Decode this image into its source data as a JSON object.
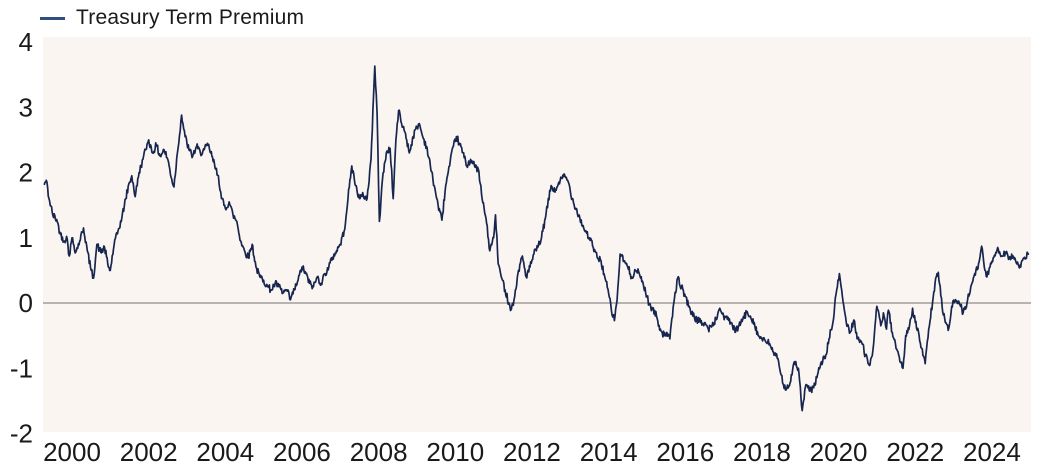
{
  "legend": {
    "label": "Treasury Term Premium"
  },
  "colors": {
    "line": "#17264e",
    "legend_marker": "#2f4f80",
    "plot_background": "#fbf5f1",
    "outer_background": "#ffffff",
    "zero_line": "#8c8c8c",
    "text": "#1a1a1a"
  },
  "chart_data": {
    "type": "line",
    "title": "",
    "xlabel": "",
    "ylabel": "",
    "legend_position": "top-left",
    "grid": false,
    "zero_line": true,
    "x_ticks": [
      2000,
      2002,
      2004,
      2006,
      2008,
      2010,
      2012,
      2014,
      2016,
      2018,
      2020,
      2022,
      2024
    ],
    "y_ticks": [
      4,
      3,
      2,
      1,
      0,
      -1,
      -2
    ],
    "xlim": [
      1999.24,
      2025.05
    ],
    "ylim": [
      -2.0,
      4.08
    ],
    "series": [
      {
        "name": "Treasury Term Premium",
        "points": [
          [
            1999.28,
            1.82
          ],
          [
            1999.33,
            1.88
          ],
          [
            1999.4,
            1.6
          ],
          [
            1999.5,
            1.35
          ],
          [
            1999.6,
            1.28
          ],
          [
            1999.7,
            1.05
          ],
          [
            1999.8,
            0.95
          ],
          [
            1999.86,
            1.02
          ],
          [
            1999.93,
            0.72
          ],
          [
            2000.0,
            1.0
          ],
          [
            2000.1,
            0.78
          ],
          [
            2000.2,
            0.95
          ],
          [
            2000.3,
            1.15
          ],
          [
            2000.4,
            0.8
          ],
          [
            2000.5,
            0.5
          ],
          [
            2000.56,
            0.38
          ],
          [
            2000.65,
            0.9
          ],
          [
            2000.75,
            0.78
          ],
          [
            2000.85,
            0.85
          ],
          [
            2000.95,
            0.55
          ],
          [
            2001.0,
            0.5
          ],
          [
            2001.1,
            0.9
          ],
          [
            2001.2,
            1.1
          ],
          [
            2001.3,
            1.3
          ],
          [
            2001.4,
            1.6
          ],
          [
            2001.5,
            1.85
          ],
          [
            2001.56,
            1.95
          ],
          [
            2001.65,
            1.63
          ],
          [
            2001.75,
            2.0
          ],
          [
            2001.85,
            2.2
          ],
          [
            2001.92,
            2.35
          ],
          [
            2002.0,
            2.5
          ],
          [
            2002.1,
            2.3
          ],
          [
            2002.2,
            2.42
          ],
          [
            2002.3,
            2.25
          ],
          [
            2002.4,
            2.35
          ],
          [
            2002.5,
            2.2
          ],
          [
            2002.6,
            1.9
          ],
          [
            2002.66,
            1.78
          ],
          [
            2002.75,
            2.3
          ],
          [
            2002.86,
            2.88
          ],
          [
            2002.95,
            2.55
          ],
          [
            2003.05,
            2.35
          ],
          [
            2003.15,
            2.25
          ],
          [
            2003.25,
            2.4
          ],
          [
            2003.35,
            2.3
          ],
          [
            2003.45,
            2.35
          ],
          [
            2003.55,
            2.42
          ],
          [
            2003.65,
            2.25
          ],
          [
            2003.75,
            2.05
          ],
          [
            2003.82,
            1.95
          ],
          [
            2003.9,
            1.6
          ],
          [
            2004.0,
            1.45
          ],
          [
            2004.1,
            1.55
          ],
          [
            2004.2,
            1.35
          ],
          [
            2004.3,
            1.25
          ],
          [
            2004.4,
            0.95
          ],
          [
            2004.5,
            0.8
          ],
          [
            2004.6,
            0.7
          ],
          [
            2004.7,
            0.9
          ],
          [
            2004.8,
            0.55
          ],
          [
            2004.9,
            0.4
          ],
          [
            2005.0,
            0.35
          ],
          [
            2005.1,
            0.25
          ],
          [
            2005.2,
            0.2
          ],
          [
            2005.3,
            0.3
          ],
          [
            2005.4,
            0.25
          ],
          [
            2005.5,
            0.15
          ],
          [
            2005.6,
            0.2
          ],
          [
            2005.7,
            0.05
          ],
          [
            2005.8,
            0.2
          ],
          [
            2005.9,
            0.35
          ],
          [
            2006.0,
            0.55
          ],
          [
            2006.1,
            0.45
          ],
          [
            2006.2,
            0.3
          ],
          [
            2006.3,
            0.25
          ],
          [
            2006.4,
            0.4
          ],
          [
            2006.5,
            0.3
          ],
          [
            2006.6,
            0.45
          ],
          [
            2006.7,
            0.55
          ],
          [
            2006.8,
            0.7
          ],
          [
            2006.9,
            0.8
          ],
          [
            2007.0,
            0.9
          ],
          [
            2007.1,
            1.1
          ],
          [
            2007.2,
            1.6
          ],
          [
            2007.3,
            2.1
          ],
          [
            2007.4,
            1.8
          ],
          [
            2007.5,
            1.6
          ],
          [
            2007.6,
            1.65
          ],
          [
            2007.7,
            1.6
          ],
          [
            2007.8,
            2.2
          ],
          [
            2007.9,
            3.63
          ],
          [
            2007.96,
            2.9
          ],
          [
            2008.02,
            1.25
          ],
          [
            2008.1,
            1.9
          ],
          [
            2008.2,
            2.3
          ],
          [
            2008.3,
            2.37
          ],
          [
            2008.38,
            1.6
          ],
          [
            2008.45,
            2.5
          ],
          [
            2008.52,
            2.95
          ],
          [
            2008.6,
            2.75
          ],
          [
            2008.7,
            2.6
          ],
          [
            2008.8,
            2.3
          ],
          [
            2008.9,
            2.55
          ],
          [
            2009.0,
            2.7
          ],
          [
            2009.06,
            2.75
          ],
          [
            2009.15,
            2.55
          ],
          [
            2009.25,
            2.4
          ],
          [
            2009.35,
            2.1
          ],
          [
            2009.45,
            1.8
          ],
          [
            2009.55,
            1.5
          ],
          [
            2009.65,
            1.27
          ],
          [
            2009.75,
            1.8
          ],
          [
            2009.85,
            2.1
          ],
          [
            2009.95,
            2.4
          ],
          [
            2010.03,
            2.55
          ],
          [
            2010.1,
            2.45
          ],
          [
            2010.2,
            2.3
          ],
          [
            2010.3,
            2.1
          ],
          [
            2010.4,
            2.2
          ],
          [
            2010.5,
            2.1
          ],
          [
            2010.6,
            2.05
          ],
          [
            2010.7,
            1.6
          ],
          [
            2010.8,
            1.3
          ],
          [
            2010.9,
            0.8
          ],
          [
            2011.0,
            1.0
          ],
          [
            2011.05,
            1.35
          ],
          [
            2011.12,
            0.6
          ],
          [
            2011.2,
            0.4
          ],
          [
            2011.3,
            0.2
          ],
          [
            2011.4,
            0.0
          ],
          [
            2011.46,
            -0.1
          ],
          [
            2011.55,
            0.1
          ],
          [
            2011.65,
            0.5
          ],
          [
            2011.75,
            0.72
          ],
          [
            2011.85,
            0.4
          ],
          [
            2011.95,
            0.55
          ],
          [
            2012.05,
            0.75
          ],
          [
            2012.15,
            0.85
          ],
          [
            2012.25,
            1.0
          ],
          [
            2012.35,
            1.3
          ],
          [
            2012.5,
            1.8
          ],
          [
            2012.6,
            1.7
          ],
          [
            2012.7,
            1.85
          ],
          [
            2012.86,
            1.95
          ],
          [
            2012.95,
            1.85
          ],
          [
            2013.05,
            1.6
          ],
          [
            2013.15,
            1.45
          ],
          [
            2013.25,
            1.3
          ],
          [
            2013.35,
            1.15
          ],
          [
            2013.5,
            1.0
          ],
          [
            2013.6,
            0.85
          ],
          [
            2013.7,
            0.7
          ],
          [
            2013.8,
            0.65
          ],
          [
            2013.9,
            0.4
          ],
          [
            2014.0,
            0.15
          ],
          [
            2014.07,
            -0.1
          ],
          [
            2014.15,
            -0.27
          ],
          [
            2014.22,
            0.05
          ],
          [
            2014.3,
            0.75
          ],
          [
            2014.4,
            0.65
          ],
          [
            2014.5,
            0.55
          ],
          [
            2014.6,
            0.4
          ],
          [
            2014.7,
            0.5
          ],
          [
            2014.8,
            0.45
          ],
          [
            2014.9,
            0.3
          ],
          [
            2015.0,
            0.1
          ],
          [
            2015.06,
            -0.02
          ],
          [
            2015.15,
            -0.1
          ],
          [
            2015.25,
            -0.2
          ],
          [
            2015.35,
            -0.4
          ],
          [
            2015.45,
            -0.5
          ],
          [
            2015.52,
            -0.45
          ],
          [
            2015.6,
            -0.55
          ],
          [
            2015.7,
            0.0
          ],
          [
            2015.8,
            0.38
          ],
          [
            2015.9,
            0.25
          ],
          [
            2016.0,
            0.1
          ],
          [
            2016.1,
            -0.05
          ],
          [
            2016.2,
            -0.2
          ],
          [
            2016.3,
            -0.25
          ],
          [
            2016.4,
            -0.3
          ],
          [
            2016.5,
            -0.3
          ],
          [
            2016.6,
            -0.4
          ],
          [
            2016.7,
            -0.35
          ],
          [
            2016.8,
            -0.25
          ],
          [
            2016.9,
            -0.08
          ],
          [
            2017.0,
            -0.2
          ],
          [
            2017.1,
            -0.25
          ],
          [
            2017.2,
            -0.3
          ],
          [
            2017.3,
            -0.45
          ],
          [
            2017.4,
            -0.35
          ],
          [
            2017.5,
            -0.25
          ],
          [
            2017.6,
            -0.15
          ],
          [
            2017.7,
            -0.2
          ],
          [
            2017.8,
            -0.3
          ],
          [
            2017.9,
            -0.5
          ],
          [
            2018.0,
            -0.55
          ],
          [
            2018.1,
            -0.6
          ],
          [
            2018.2,
            -0.62
          ],
          [
            2018.3,
            -0.75
          ],
          [
            2018.4,
            -0.85
          ],
          [
            2018.5,
            -1.1
          ],
          [
            2018.56,
            -1.25
          ],
          [
            2018.65,
            -1.3
          ],
          [
            2018.75,
            -1.2
          ],
          [
            2018.85,
            -0.9
          ],
          [
            2018.95,
            -1.0
          ],
          [
            2019.05,
            -1.65
          ],
          [
            2019.15,
            -1.25
          ],
          [
            2019.25,
            -1.35
          ],
          [
            2019.35,
            -1.3
          ],
          [
            2019.45,
            -1.1
          ],
          [
            2019.55,
            -0.9
          ],
          [
            2019.65,
            -0.85
          ],
          [
            2019.75,
            -0.55
          ],
          [
            2019.85,
            -0.3
          ],
          [
            2019.95,
            0.2
          ],
          [
            2020.02,
            0.45
          ],
          [
            2020.1,
            0.1
          ],
          [
            2020.2,
            -0.3
          ],
          [
            2020.3,
            -0.45
          ],
          [
            2020.4,
            -0.26
          ],
          [
            2020.5,
            -0.55
          ],
          [
            2020.6,
            -0.6
          ],
          [
            2020.7,
            -0.8
          ],
          [
            2020.82,
            -0.95
          ],
          [
            2020.9,
            -0.7
          ],
          [
            2021.0,
            -0.05
          ],
          [
            2021.1,
            -0.35
          ],
          [
            2021.17,
            -0.15
          ],
          [
            2021.25,
            -0.4
          ],
          [
            2021.3,
            -0.11
          ],
          [
            2021.4,
            -0.45
          ],
          [
            2021.5,
            -0.7
          ],
          [
            2021.6,
            -0.9
          ],
          [
            2021.68,
            -1.0
          ],
          [
            2021.75,
            -0.5
          ],
          [
            2021.85,
            -0.35
          ],
          [
            2021.93,
            -0.08
          ],
          [
            2022.0,
            -0.3
          ],
          [
            2022.1,
            -0.5
          ],
          [
            2022.2,
            -0.8
          ],
          [
            2022.26,
            -0.93
          ],
          [
            2022.35,
            -0.4
          ],
          [
            2022.45,
            0.0
          ],
          [
            2022.55,
            0.4
          ],
          [
            2022.6,
            0.47
          ],
          [
            2022.7,
            -0.05
          ],
          [
            2022.8,
            -0.3
          ],
          [
            2022.86,
            -0.42
          ],
          [
            2022.95,
            -0.05
          ],
          [
            2023.05,
            0.05
          ],
          [
            2023.15,
            0.0
          ],
          [
            2023.25,
            -0.15
          ],
          [
            2023.35,
            0.0
          ],
          [
            2023.45,
            0.25
          ],
          [
            2023.55,
            0.45
          ],
          [
            2023.65,
            0.6
          ],
          [
            2023.73,
            0.87
          ],
          [
            2023.8,
            0.55
          ],
          [
            2023.87,
            0.4
          ],
          [
            2023.95,
            0.55
          ],
          [
            2024.05,
            0.7
          ],
          [
            2024.15,
            0.85
          ],
          [
            2024.25,
            0.72
          ],
          [
            2024.35,
            0.78
          ],
          [
            2024.45,
            0.7
          ],
          [
            2024.55,
            0.72
          ],
          [
            2024.65,
            0.6
          ],
          [
            2024.75,
            0.55
          ],
          [
            2024.85,
            0.7
          ],
          [
            2024.95,
            0.75
          ]
        ]
      }
    ]
  }
}
